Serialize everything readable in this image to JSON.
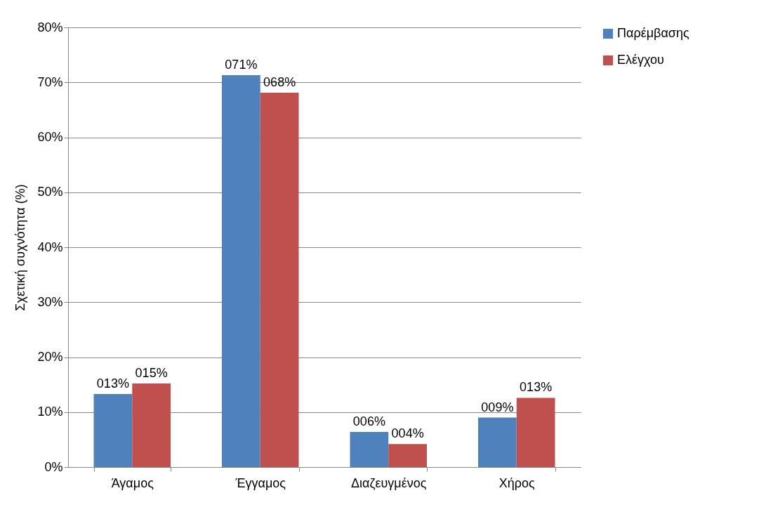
{
  "chart_data": {
    "type": "bar",
    "ylabel": "Σχετική συχνότητα (%)",
    "categories": [
      "Άγαμος",
      "Έγγαμος",
      "Διαζευγμένος",
      "Χήρος"
    ],
    "series": [
      {
        "name": "Παρέμβασης",
        "color": "#4f81bd",
        "values": [
          13.3,
          71.3,
          6.4,
          9.0
        ],
        "value_labels": [
          "013%",
          "071%",
          "006%",
          "009%"
        ]
      },
      {
        "name": "Ελέγχου",
        "color": "#c0504d",
        "values": [
          15.2,
          68.1,
          4.2,
          12.6
        ],
        "value_labels": [
          "015%",
          "068%",
          "004%",
          "013%"
        ]
      }
    ],
    "ylim": [
      0,
      80
    ],
    "yticks": [
      {
        "value": 0,
        "label": "0%"
      },
      {
        "value": 10,
        "label": "10%"
      },
      {
        "value": 20,
        "label": "20%"
      },
      {
        "value": 30,
        "label": "30%"
      },
      {
        "value": 40,
        "label": "40%"
      },
      {
        "value": 50,
        "label": "50%"
      },
      {
        "value": 60,
        "label": "60%"
      },
      {
        "value": 70,
        "label": "70%"
      },
      {
        "value": 80,
        "label": "80%"
      }
    ],
    "grid": "y",
    "legend": "right"
  }
}
